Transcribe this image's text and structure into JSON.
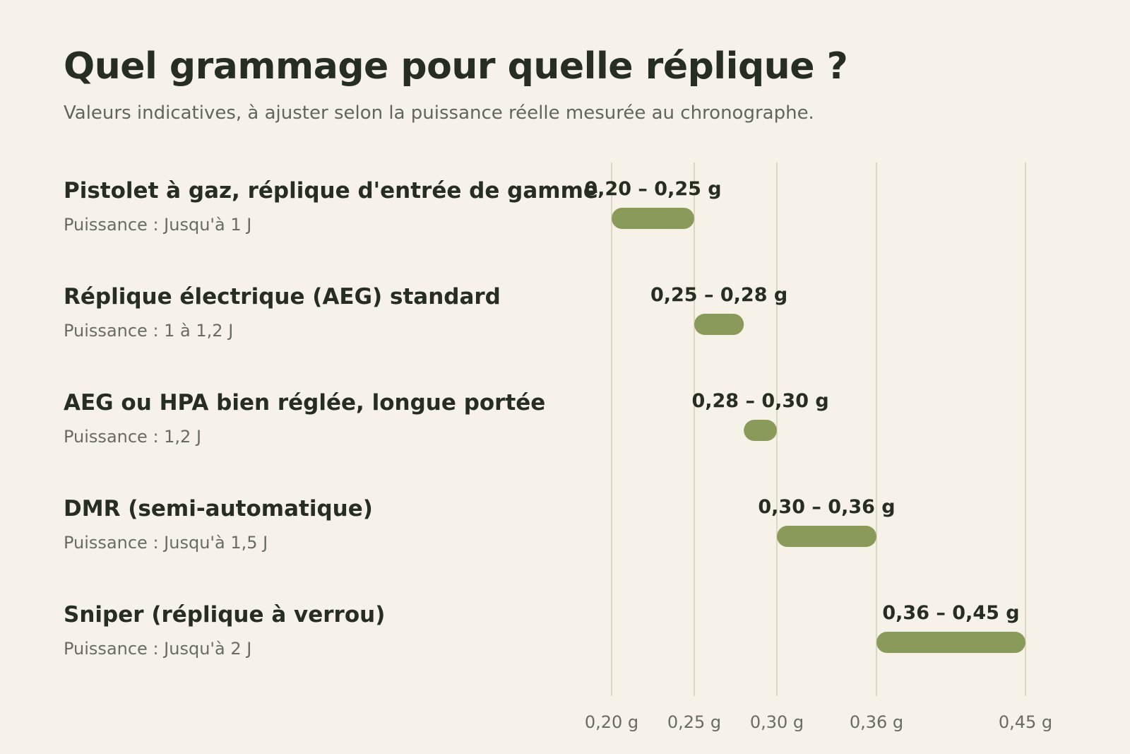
{
  "chart_data": {
    "type": "bar",
    "title": "Quel grammage pour quelle réplique ?",
    "subtitle": "Valeurs indicatives, à ajuster selon la puissance réelle mesurée au chronographe.",
    "x_ticks": [
      {
        "value": 0.2,
        "label": "0,20 g"
      },
      {
        "value": 0.25,
        "label": "0,25 g"
      },
      {
        "value": 0.3,
        "label": "0,30 g"
      },
      {
        "value": 0.36,
        "label": "0,36 g"
      },
      {
        "value": 0.45,
        "label": "0,45 g"
      }
    ],
    "tick_spacing": "categorical",
    "rows": [
      {
        "name": "Pistolet à gaz, réplique d'entrée de gamme",
        "power": "Puissance : Jusqu'à 1 J",
        "min": 0.2,
        "max": 0.25,
        "label": "0,20 – 0,25 g"
      },
      {
        "name": "Réplique électrique (AEG) standard",
        "power": "Puissance : 1 à 1,2 J",
        "min": 0.25,
        "max": 0.28,
        "label": "0,25 – 0,28 g"
      },
      {
        "name": "AEG ou HPA bien réglée, longue portée",
        "power": "Puissance : 1,2 J",
        "min": 0.28,
        "max": 0.3,
        "label": "0,28 – 0,30 g"
      },
      {
        "name": "DMR (semi-automatique)",
        "power": "Puissance : Jusqu'à 1,5 J",
        "min": 0.3,
        "max": 0.36,
        "label": "0,30 – 0,36 g"
      },
      {
        "name": "Sniper (réplique à verrou)",
        "power": "Puissance : Jusqu'à 2 J",
        "min": 0.36,
        "max": 0.45,
        "label": "0,36 – 0,45 g"
      }
    ],
    "grid": true,
    "colors": {
      "bar": "#8a9a5b",
      "grid": "#dcd7c2",
      "background": "#f7f2e7",
      "text": "#262e1f",
      "muted": "#6a6c62"
    }
  }
}
